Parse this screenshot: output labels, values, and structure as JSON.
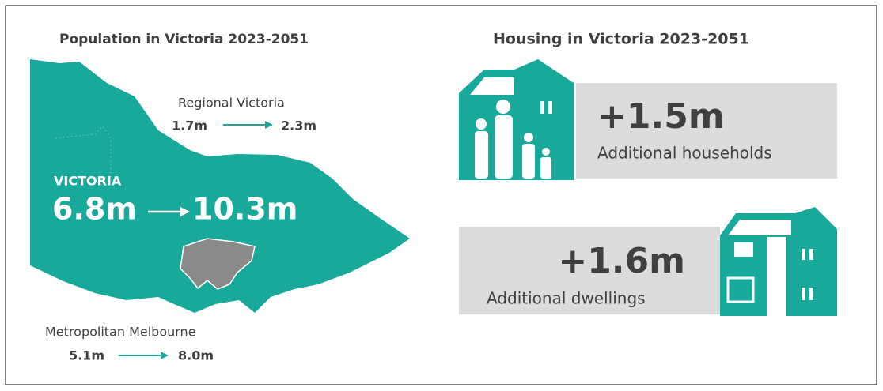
{
  "population": {
    "title": "Population in Victoria 2023-2051",
    "regional": {
      "label": "Regional Victoria",
      "from": "1.7m",
      "to": "2.3m"
    },
    "victoria": {
      "label": "VICTORIA",
      "from": "6.8m",
      "to": "10.3m"
    },
    "metro": {
      "label": "Metropolitan Melbourne",
      "from": "5.1m",
      "to": "8.0m"
    }
  },
  "housing": {
    "title": "Housing in Victoria 2023-2051",
    "households": {
      "value": "+1.5m",
      "label": "Additional households"
    },
    "dwellings": {
      "value": "+1.6m",
      "label": "Additional dwellings"
    }
  }
}
